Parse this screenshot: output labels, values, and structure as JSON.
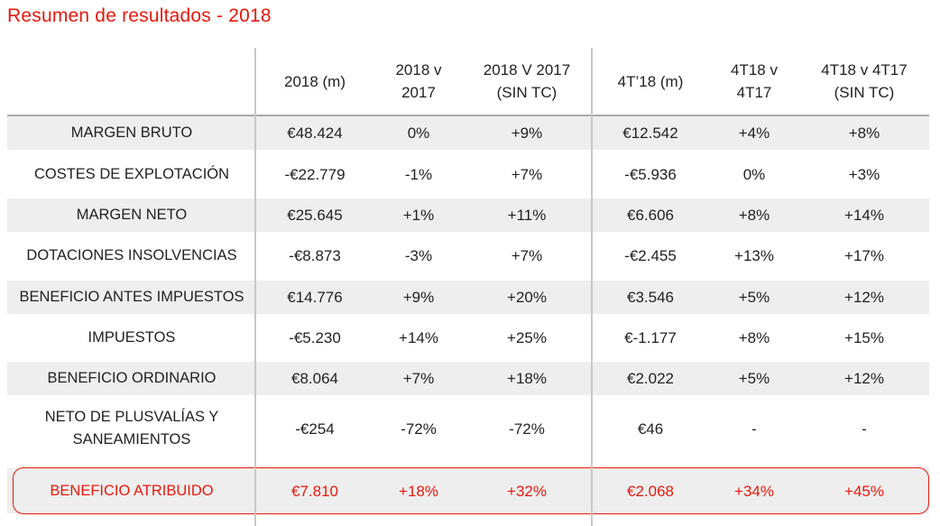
{
  "title": "Resumen de resultados - 2018",
  "columns": [
    "2018 (m)",
    "2018 v\n2017",
    "2018 V 2017\n(SIN TC)",
    "4T’18 (m)",
    "4T18 v\n4T17",
    "4T18 v 4T17\n(SIN TC)"
  ],
  "rows": [
    {
      "label": "MARGEN BRUTO",
      "values": [
        "€48.424",
        "0%",
        "+9%",
        "€12.542",
        "+4%",
        "+8%"
      ]
    },
    {
      "label": "COSTES DE EXPLOTACIÓN",
      "values": [
        "-€22.779",
        "-1%",
        "+7%",
        "-€5.936",
        "0%",
        "+3%"
      ]
    },
    {
      "label": "MARGEN NETO",
      "values": [
        "€25.645",
        "+1%",
        "+11%",
        "€6.606",
        "+8%",
        "+14%"
      ]
    },
    {
      "label": "DOTACIONES INSOLVENCIAS",
      "values": [
        "-€8.873",
        "-3%",
        "+7%",
        "-€2.455",
        "+13%",
        "+17%"
      ]
    },
    {
      "label": "BENEFICIO ANTES IMPUESTOS",
      "values": [
        "€14.776",
        "+9%",
        "+20%",
        "€3.546",
        "+5%",
        "+12%"
      ]
    },
    {
      "label": "IMPUESTOS",
      "values": [
        "-€5.230",
        "+14%",
        "+25%",
        "€-1.177",
        "+8%",
        "+15%"
      ]
    },
    {
      "label": "BENEFICIO ORDINARIO",
      "values": [
        "€8.064",
        "+7%",
        "+18%",
        "€2.022",
        "+5%",
        "+12%"
      ]
    },
    {
      "label": "NETO DE PLUSVALÍAS Y\nSANEAMIENTOS",
      "values": [
        "-€254",
        "-72%",
        "-72%",
        "€46",
        "-",
        "-"
      ]
    }
  ],
  "total": {
    "label": "BENEFICIO ATRIBUIDO",
    "values": [
      "€7.810",
      "+18%",
      "+32%",
      "€2.068",
      "+34%",
      "+45%"
    ]
  },
  "colors": {
    "accent": "#e8180c",
    "shade": "#eeeeee",
    "divider": "#c8c8c8"
  }
}
